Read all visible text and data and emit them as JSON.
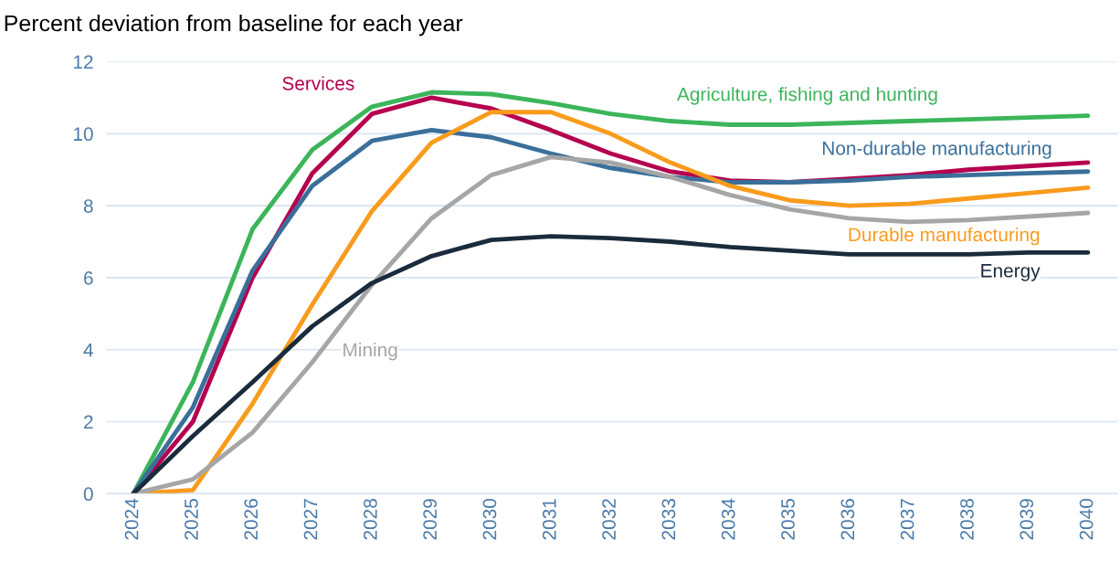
{
  "chart_data": {
    "type": "line",
    "title": "Percent deviation from baseline for each year",
    "categories": [
      "2024",
      "2025",
      "2026",
      "2027",
      "2028",
      "2029",
      "2030",
      "2031",
      "2032",
      "2033",
      "2034",
      "2035",
      "2036",
      "2037",
      "2038",
      "2039",
      "2040"
    ],
    "series": [
      {
        "name": "Agriculture, fishing and hunting",
        "color": "#3cb55a",
        "values": [
          0,
          3.1,
          7.35,
          9.55,
          10.75,
          11.15,
          11.1,
          10.85,
          10.55,
          10.35,
          10.25,
          10.25,
          10.3,
          10.35,
          10.4,
          10.45,
          10.5
        ]
      },
      {
        "name": "Services",
        "color": "#b5004f",
        "values": [
          0,
          2.0,
          6.0,
          8.9,
          10.55,
          11.0,
          10.7,
          10.1,
          9.45,
          8.95,
          8.7,
          8.65,
          8.75,
          8.85,
          9.0,
          9.1,
          9.2
        ]
      },
      {
        "name": "Non-durable manufacturing",
        "color": "#3a6f9a",
        "values": [
          0,
          2.4,
          6.2,
          8.55,
          9.8,
          10.1,
          9.9,
          9.45,
          9.05,
          8.8,
          8.65,
          8.65,
          8.7,
          8.8,
          8.85,
          8.9,
          8.95
        ]
      },
      {
        "name": "Durable manufacturing",
        "color": "#f99b1c",
        "values": [
          0,
          0.1,
          2.5,
          5.25,
          7.85,
          9.75,
          10.6,
          10.6,
          10.0,
          9.2,
          8.55,
          8.15,
          8.0,
          8.05,
          8.2,
          8.35,
          8.5
        ]
      },
      {
        "name": "Mining",
        "color": "#a6a6a6",
        "values": [
          0,
          0.4,
          1.7,
          3.65,
          5.8,
          7.65,
          8.85,
          9.35,
          9.2,
          8.8,
          8.3,
          7.9,
          7.65,
          7.55,
          7.6,
          7.7,
          7.8
        ]
      },
      {
        "name": "Energy",
        "color": "#1a2b3c",
        "values": [
          0,
          1.6,
          3.1,
          4.65,
          5.85,
          6.6,
          7.05,
          7.15,
          7.1,
          7.0,
          6.85,
          6.75,
          6.65,
          6.65,
          6.65,
          6.7,
          6.7
        ]
      }
    ],
    "ylim": [
      0,
      12
    ],
    "yticks": [
      0,
      2,
      4,
      6,
      8,
      10,
      12
    ],
    "grid": "y",
    "legend": false,
    "marker": "none",
    "line_style": "solid"
  }
}
